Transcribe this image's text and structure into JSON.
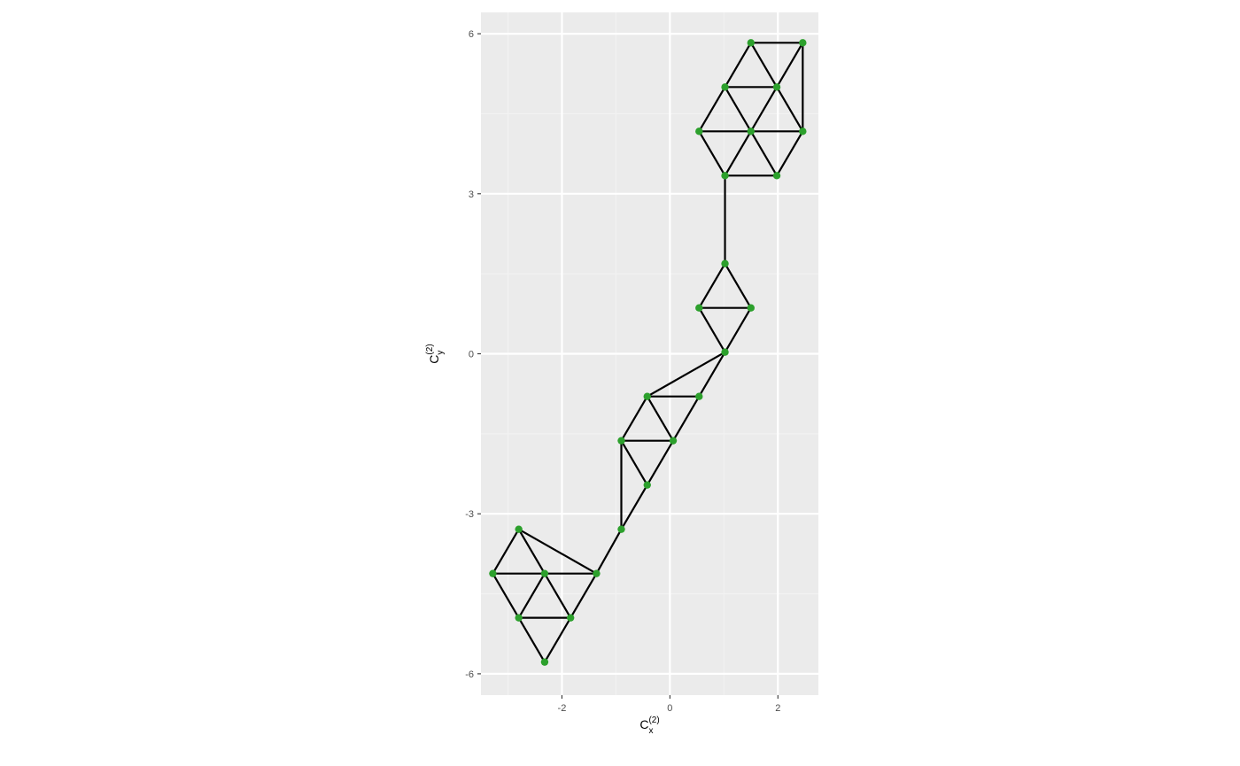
{
  "chart_data": {
    "type": "scatter",
    "subtype": "network-graph",
    "title": "",
    "xlabel": {
      "base": "C",
      "sub": "x",
      "sup": "(2)"
    },
    "ylabel": {
      "base": "C",
      "sub": "y",
      "sup": "(2)"
    },
    "xlim": [
      -3.5,
      2.75
    ],
    "ylim": [
      -6.4,
      6.4
    ],
    "x_ticks": [
      -2,
      0,
      2
    ],
    "x_tick_labels": [
      "-2",
      "0",
      "2"
    ],
    "y_ticks": [
      -6,
      -3,
      0,
      3,
      6
    ],
    "y_tick_labels": [
      "-6",
      "-3",
      "0",
      "3",
      "6"
    ],
    "x_minor_ticks": [
      -3,
      -1,
      1
    ],
    "y_minor_ticks": [
      -4.5,
      -1.5,
      1.5,
      4.5
    ],
    "grid": true,
    "legend": "none",
    "colors": {
      "panel_background": "#ebebeb",
      "grid_major": "#ffffff",
      "grid_minor": "#f2f2f2",
      "edge": "#000000",
      "node": "#2ca02c",
      "axis_tick": "#333333"
    },
    "nodes": [
      {
        "id": 1,
        "x": 1.5,
        "y": 5.83
      },
      {
        "id": 2,
        "x": 2.46,
        "y": 5.83
      },
      {
        "id": 3,
        "x": 1.02,
        "y": 5.0
      },
      {
        "id": 4,
        "x": 1.98,
        "y": 5.0
      },
      {
        "id": 5,
        "x": 0.54,
        "y": 4.17
      },
      {
        "id": 6,
        "x": 1.5,
        "y": 4.17
      },
      {
        "id": 7,
        "x": 2.46,
        "y": 4.17
      },
      {
        "id": 8,
        "x": 1.02,
        "y": 3.34
      },
      {
        "id": 9,
        "x": 1.98,
        "y": 3.34
      },
      {
        "id": 10,
        "x": 1.02,
        "y": 1.69
      },
      {
        "id": 11,
        "x": 0.54,
        "y": 0.86
      },
      {
        "id": 12,
        "x": 1.5,
        "y": 0.86
      },
      {
        "id": 13,
        "x": 1.02,
        "y": 0.03
      },
      {
        "id": 14,
        "x": -0.42,
        "y": -0.8
      },
      {
        "id": 15,
        "x": 0.54,
        "y": -0.8
      },
      {
        "id": 16,
        "x": -0.9,
        "y": -1.63
      },
      {
        "id": 17,
        "x": 0.06,
        "y": -1.63
      },
      {
        "id": 18,
        "x": -0.42,
        "y": -2.46
      },
      {
        "id": 19,
        "x": -0.9,
        "y": -3.29
      },
      {
        "id": 20,
        "x": -2.8,
        "y": -3.29
      },
      {
        "id": 21,
        "x": -3.28,
        "y": -4.12
      },
      {
        "id": 22,
        "x": -2.32,
        "y": -4.12
      },
      {
        "id": 23,
        "x": -1.36,
        "y": -4.12
      },
      {
        "id": 24,
        "x": -2.8,
        "y": -4.95
      },
      {
        "id": 25,
        "x": -1.84,
        "y": -4.95
      },
      {
        "id": 26,
        "x": -2.32,
        "y": -5.78
      }
    ],
    "edges": [
      [
        1,
        2
      ],
      [
        1,
        3
      ],
      [
        1,
        4
      ],
      [
        2,
        4
      ],
      [
        2,
        7
      ],
      [
        3,
        4
      ],
      [
        3,
        5
      ],
      [
        3,
        6
      ],
      [
        4,
        6
      ],
      [
        4,
        7
      ],
      [
        5,
        6
      ],
      [
        6,
        7
      ],
      [
        5,
        8
      ],
      [
        6,
        8
      ],
      [
        6,
        9
      ],
      [
        7,
        9
      ],
      [
        8,
        9
      ],
      [
        8,
        10
      ],
      [
        10,
        11
      ],
      [
        10,
        12
      ],
      [
        11,
        12
      ],
      [
        11,
        13
      ],
      [
        12,
        13
      ],
      [
        13,
        14
      ],
      [
        13,
        15
      ],
      [
        14,
        15
      ],
      [
        14,
        16
      ],
      [
        14,
        17
      ],
      [
        15,
        17
      ],
      [
        16,
        17
      ],
      [
        16,
        18
      ],
      [
        17,
        18
      ],
      [
        16,
        19
      ],
      [
        18,
        19
      ],
      [
        19,
        23
      ],
      [
        20,
        21
      ],
      [
        20,
        22
      ],
      [
        20,
        23
      ],
      [
        21,
        22
      ],
      [
        22,
        23
      ],
      [
        21,
        24
      ],
      [
        22,
        24
      ],
      [
        22,
        25
      ],
      [
        23,
        25
      ],
      [
        24,
        25
      ],
      [
        24,
        26
      ],
      [
        25,
        26
      ]
    ]
  }
}
